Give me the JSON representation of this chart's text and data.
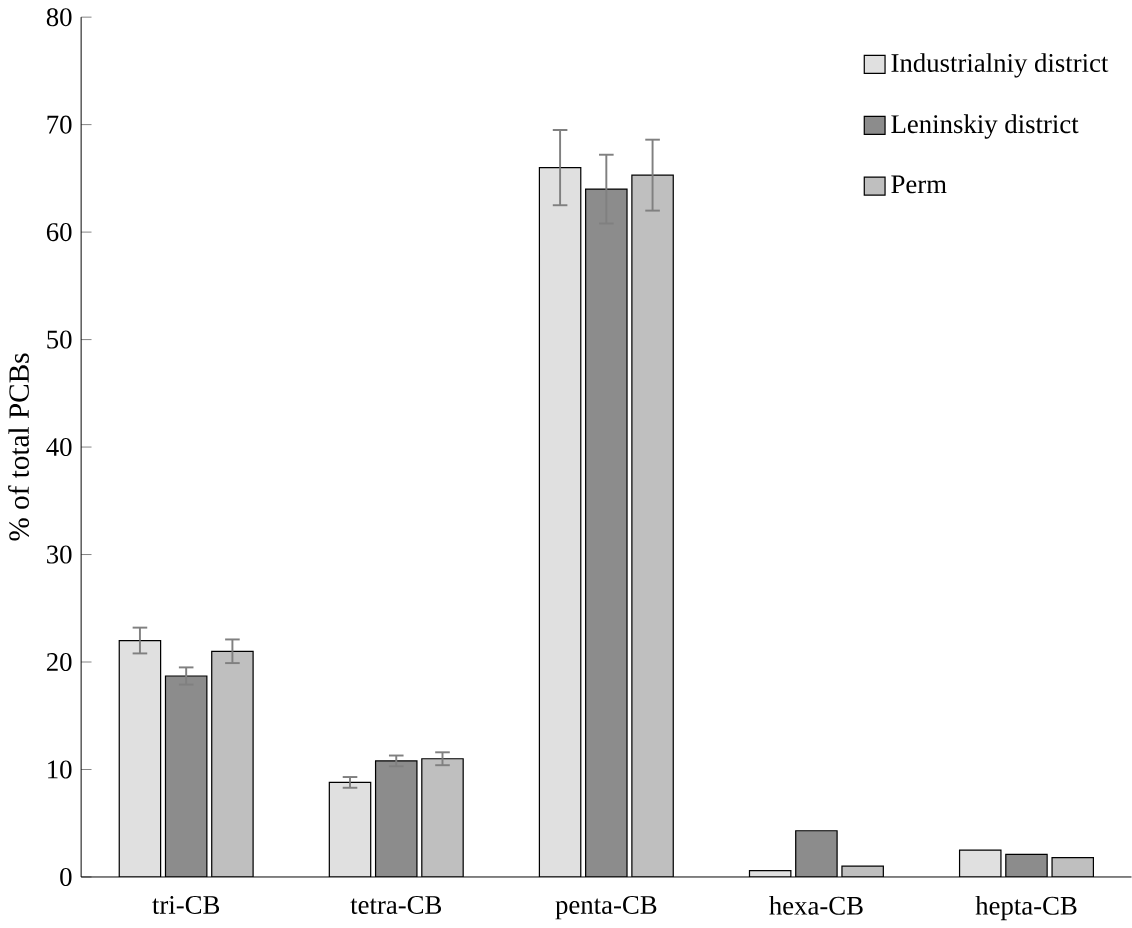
{
  "chart_data": {
    "type": "bar",
    "ylabel": "% of total PCBs",
    "categories": [
      "tri-CB",
      "tetra-CB",
      "penta-CB",
      "hexa-CB",
      "hepta-CB"
    ],
    "series": [
      {
        "name": "Industrialniy district",
        "color": "#e0e0e0",
        "values": [
          22,
          8.8,
          66,
          0.6,
          2.5
        ],
        "errors": [
          1.2,
          0.5,
          3.5,
          null,
          null
        ]
      },
      {
        "name": "Leninskiy district",
        "color": "#8c8c8c",
        "values": [
          18.7,
          10.8,
          64,
          4.3,
          2.1
        ],
        "errors": [
          0.8,
          0.5,
          3.2,
          null,
          null
        ]
      },
      {
        "name": "Perm",
        "color": "#bfbfbf",
        "values": [
          21,
          11,
          65.3,
          1.0,
          1.8
        ],
        "errors": [
          1.1,
          0.6,
          3.3,
          null,
          null
        ]
      }
    ],
    "ylim": [
      0,
      80
    ],
    "yticks": [
      0,
      10,
      20,
      30,
      40,
      50,
      60,
      70,
      80
    ],
    "grid": false,
    "legend": "top right"
  }
}
